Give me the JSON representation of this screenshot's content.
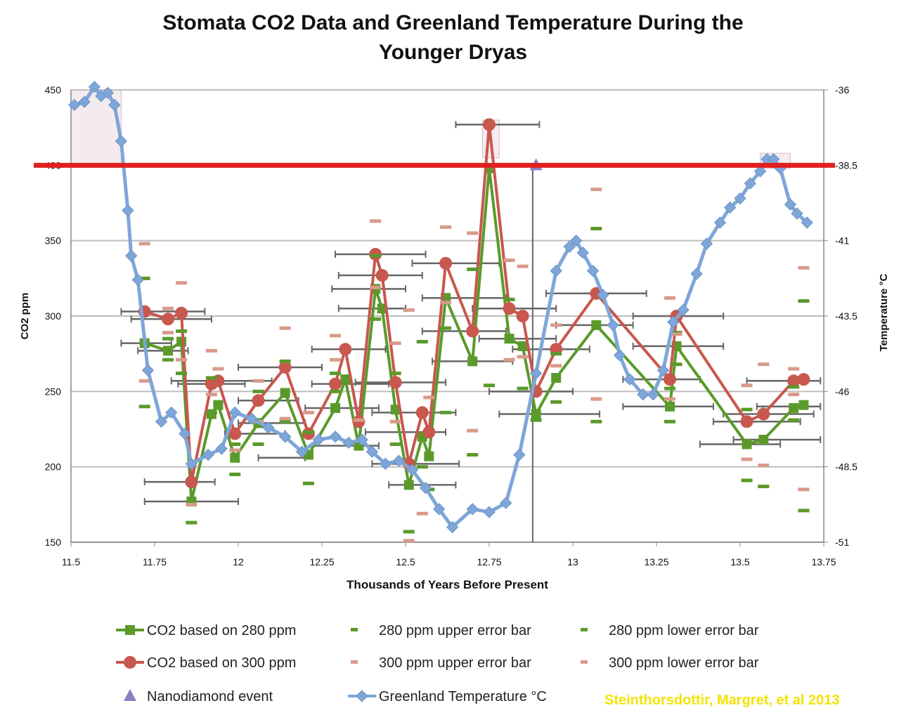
{
  "chart_data": {
    "type": "line",
    "title_line1": "Stomata CO2 Data and Greenland Temperature During the",
    "title_line2": "Younger Dryas",
    "xlabel": "Thousands of Years Before Present",
    "ylabel_left": "CO2 ppm",
    "ylabel_right": "Temperature °C",
    "xlim": [
      11.5,
      13.75
    ],
    "ylim_left": [
      150,
      450
    ],
    "ylim_right": [
      -51,
      -36
    ],
    "x_ticks": [
      "11.5",
      "11.75",
      "12",
      "12.25",
      "12.5",
      "12.75",
      "13",
      "13.25",
      "13.5",
      "13.75"
    ],
    "y_left_ticks": [
      "150",
      "200",
      "250",
      "300",
      "350",
      "400",
      "450"
    ],
    "y_right_ticks": [
      "-36",
      "-38.5",
      "-41",
      "-43.5",
      "-46",
      "-48.5",
      "-51"
    ],
    "grid": true,
    "reference_line": {
      "y": 400,
      "color": "#e02020"
    },
    "vertical_line": {
      "x": 12.88
    },
    "highlight_regions": [
      {
        "x": [
          11.5,
          11.65
        ],
        "y": [
          400,
          450
        ]
      },
      {
        "x": [
          12.73,
          12.78
        ],
        "y": [
          405,
          430
        ]
      },
      {
        "x": [
          13.56,
          13.65
        ],
        "y": [
          398,
          408
        ]
      }
    ],
    "series": [
      {
        "name": "CO2 based on 280 ppm",
        "color": "#5a9a2a",
        "marker": "square",
        "x": [
          11.72,
          11.79,
          11.83,
          11.86,
          11.92,
          11.94,
          11.99,
          12.06,
          12.14,
          12.21,
          12.29,
          12.32,
          12.36,
          12.41,
          12.43,
          12.47,
          12.51,
          12.55,
          12.57,
          12.62,
          12.7,
          12.75,
          12.81,
          12.85,
          12.89,
          12.95,
          13.07,
          13.29,
          13.31,
          13.52,
          13.57,
          13.66,
          13.69
        ],
        "y": [
          282,
          277,
          283,
          177,
          235,
          241,
          206,
          229,
          249,
          208,
          239,
          258,
          214,
          318,
          305,
          238,
          188,
          220,
          207,
          312,
          270,
          398,
          285,
          280,
          235,
          259,
          294,
          240,
          280,
          215,
          218,
          239,
          241
        ]
      },
      {
        "name": "CO2 based on 300 ppm",
        "color": "#c8574e",
        "marker": "circle",
        "x": [
          11.72,
          11.79,
          11.83,
          11.86,
          11.92,
          11.94,
          11.99,
          12.06,
          12.14,
          12.21,
          12.29,
          12.32,
          12.36,
          12.41,
          12.43,
          12.47,
          12.51,
          12.55,
          12.57,
          12.62,
          12.7,
          12.75,
          12.81,
          12.85,
          12.89,
          12.95,
          13.07,
          13.29,
          13.31,
          13.52,
          13.57,
          13.66,
          13.69
        ],
        "y": [
          303,
          298,
          302,
          190,
          255,
          257,
          222,
          244,
          266,
          222,
          255,
          278,
          230,
          341,
          327,
          256,
          202,
          236,
          223,
          335,
          290,
          427,
          305,
          300,
          250,
          278,
          315,
          258,
          300,
          230,
          235,
          257,
          258
        ]
      },
      {
        "name": "280 ppm upper error bar",
        "color": "#5a9a2a",
        "marker": "dash",
        "x": [
          11.72,
          11.79,
          11.83,
          11.92,
          11.99,
          12.06,
          12.14,
          12.21,
          12.29,
          12.41,
          12.47,
          12.55,
          12.62,
          12.7,
          12.81,
          12.95,
          13.07,
          13.29,
          13.31,
          13.52,
          13.66,
          13.69
        ],
        "y": [
          325,
          285,
          290,
          259,
          215,
          250,
          270,
          223,
          262,
          340,
          262,
          283,
          292,
          331,
          311,
          275,
          358,
          252,
          289,
          238,
          253,
          310
        ]
      },
      {
        "name": "280 ppm lower error bar",
        "color": "#5a9a2a",
        "marker": "dash",
        "x": [
          11.72,
          11.79,
          11.83,
          11.86,
          11.92,
          11.99,
          12.06,
          12.14,
          12.21,
          12.29,
          12.41,
          12.47,
          12.51,
          12.55,
          12.57,
          12.62,
          12.7,
          12.75,
          12.85,
          12.89,
          12.95,
          13.07,
          13.29,
          13.31,
          13.52,
          13.57,
          13.66,
          13.69
        ],
        "y": [
          240,
          271,
          262,
          163,
          236,
          195,
          215,
          230,
          189,
          250,
          298,
          215,
          157,
          200,
          185,
          236,
          208,
          254,
          252,
          231,
          243,
          230,
          230,
          268,
          191,
          187,
          231,
          171
        ]
      },
      {
        "name": "300 ppm upper error bar",
        "color": "#d99a8a",
        "marker": "dash",
        "x": [
          11.72,
          11.79,
          11.83,
          11.92,
          11.94,
          12.06,
          12.14,
          12.29,
          12.36,
          12.41,
          12.47,
          12.51,
          12.57,
          12.62,
          12.7,
          12.81,
          12.85,
          12.95,
          13.07,
          13.29,
          13.31,
          13.52,
          13.57,
          13.66,
          13.69
        ],
        "y": [
          348,
          305,
          322,
          277,
          265,
          257,
          292,
          287,
          231,
          363,
          282,
          304,
          246,
          359,
          355,
          337,
          333,
          294,
          384,
          312,
          288,
          254,
          268,
          265,
          332
        ]
      },
      {
        "name": "300 ppm lower error bar",
        "color": "#d99a8a",
        "marker": "dash",
        "x": [
          11.72,
          11.79,
          11.83,
          11.86,
          11.92,
          11.99,
          12.06,
          12.14,
          12.21,
          12.29,
          12.41,
          12.47,
          12.51,
          12.55,
          12.62,
          12.7,
          12.81,
          12.85,
          12.95,
          13.07,
          13.29,
          13.52,
          13.57,
          13.66,
          13.69
        ],
        "y": [
          257,
          289,
          271,
          175,
          248,
          211,
          230,
          232,
          236,
          271,
          319,
          230,
          151,
          169,
          309,
          224,
          271,
          273,
          267,
          245,
          245,
          205,
          201,
          248,
          185
        ]
      },
      {
        "name": "Nanodiamond event",
        "color": "#8e7cc3",
        "marker": "triangle",
        "x": [
          12.89
        ],
        "y": [
          400
        ]
      },
      {
        "name": "Greenland Temperature °C",
        "color": "#7ea6d8",
        "marker": "diamond",
        "axis": "right",
        "x": [
          11.51,
          11.54,
          11.57,
          11.59,
          11.61,
          11.63,
          11.65,
          11.67,
          11.68,
          11.7,
          11.73,
          11.77,
          11.8,
          11.84,
          11.86,
          11.91,
          11.95,
          11.99,
          12.04,
          12.09,
          12.14,
          12.19,
          12.24,
          12.29,
          12.33,
          12.37,
          12.4,
          12.44,
          12.48,
          12.52,
          12.56,
          12.6,
          12.64,
          12.7,
          12.75,
          12.8,
          12.84,
          12.89,
          12.95,
          12.99,
          13.01,
          13.03,
          13.06,
          13.09,
          13.12,
          13.14,
          13.17,
          13.21,
          13.24,
          13.27,
          13.3,
          13.33,
          13.37,
          13.4,
          13.44,
          13.47,
          13.5,
          13.53,
          13.56,
          13.58,
          13.6,
          13.62,
          13.65,
          13.67,
          13.7
        ],
        "y": [
          -36.5,
          -36.4,
          -35.9,
          -36.2,
          -36.1,
          -36.5,
          -37.7,
          -40.0,
          -41.5,
          -42.3,
          -45.3,
          -47.0,
          -46.7,
          -47.4,
          -48.4,
          -48.1,
          -47.9,
          -46.7,
          -46.9,
          -47.2,
          -47.5,
          -48.0,
          -47.6,
          -47.5,
          -47.7,
          -47.6,
          -48.0,
          -48.4,
          -48.3,
          -48.6,
          -49.2,
          -49.9,
          -50.5,
          -49.9,
          -50.0,
          -49.7,
          -48.1,
          -45.4,
          -42.0,
          -41.2,
          -41.0,
          -41.4,
          -42.0,
          -42.8,
          -43.8,
          -44.8,
          -45.6,
          -46.1,
          -46.1,
          -45.3,
          -43.7,
          -43.3,
          -42.1,
          -41.1,
          -40.4,
          -39.9,
          -39.6,
          -39.1,
          -38.7,
          -38.3,
          -38.3,
          -38.6,
          -39.8,
          -40.1,
          -40.4
        ]
      }
    ],
    "x_error_bars": [
      {
        "y": 303,
        "x": [
          11.65,
          11.9
        ]
      },
      {
        "y": 298,
        "x": [
          11.68,
          11.92
        ]
      },
      {
        "y": 282,
        "x": [
          11.65,
          11.8
        ]
      },
      {
        "y": 277,
        "x": [
          11.7,
          11.85
        ]
      },
      {
        "y": 190,
        "x": [
          11.72,
          11.93
        ]
      },
      {
        "y": 177,
        "x": [
          11.72,
          12.0
        ]
      },
      {
        "y": 257,
        "x": [
          11.8,
          12.1
        ]
      },
      {
        "y": 255,
        "x": [
          11.82,
          12.02
        ]
      },
      {
        "y": 222,
        "x": [
          11.96,
          12.14
        ]
      },
      {
        "y": 244,
        "x": [
          12.0,
          12.18
        ]
      },
      {
        "y": 266,
        "x": [
          12.0,
          12.25
        ]
      },
      {
        "y": 206,
        "x": [
          12.06,
          12.2
        ]
      },
      {
        "y": 229,
        "x": [
          12.0,
          12.2
        ]
      },
      {
        "y": 278,
        "x": [
          12.22,
          12.44
        ]
      },
      {
        "y": 255,
        "x": [
          12.22,
          12.45
        ]
      },
      {
        "y": 239,
        "x": [
          12.2,
          12.42
        ]
      },
      {
        "y": 214,
        "x": [
          12.22,
          12.42
        ]
      },
      {
        "y": 341,
        "x": [
          12.29,
          12.56
        ]
      },
      {
        "y": 327,
        "x": [
          12.3,
          12.55
        ]
      },
      {
        "y": 318,
        "x": [
          12.28,
          12.5
        ]
      },
      {
        "y": 305,
        "x": [
          12.3,
          12.5
        ]
      },
      {
        "y": 256,
        "x": [
          12.35,
          12.62
        ]
      },
      {
        "y": 236,
        "x": [
          12.4,
          12.65
        ]
      },
      {
        "y": 223,
        "x": [
          12.38,
          12.62
        ]
      },
      {
        "y": 202,
        "x": [
          12.4,
          12.66
        ]
      },
      {
        "y": 188,
        "x": [
          12.45,
          12.65
        ]
      },
      {
        "y": 335,
        "x": [
          12.52,
          12.78
        ]
      },
      {
        "y": 312,
        "x": [
          12.55,
          12.8
        ]
      },
      {
        "y": 290,
        "x": [
          12.55,
          12.8
        ]
      },
      {
        "y": 270,
        "x": [
          12.58,
          12.82
        ]
      },
      {
        "y": 427,
        "x": [
          12.65,
          12.9
        ]
      },
      {
        "y": 305,
        "x": [
          12.7,
          12.95
        ]
      },
      {
        "y": 285,
        "x": [
          12.72,
          12.95
        ]
      },
      {
        "y": 250,
        "x": [
          12.75,
          13.0
        ]
      },
      {
        "y": 235,
        "x": [
          12.78,
          13.08
        ]
      },
      {
        "y": 278,
        "x": [
          12.82,
          13.05
        ]
      },
      {
        "y": 315,
        "x": [
          12.92,
          13.22
        ]
      },
      {
        "y": 294,
        "x": [
          12.95,
          13.18
        ]
      },
      {
        "y": 258,
        "x": [
          13.15,
          13.38
        ]
      },
      {
        "y": 240,
        "x": [
          13.15,
          13.42
        ]
      },
      {
        "y": 300,
        "x": [
          13.18,
          13.45
        ]
      },
      {
        "y": 280,
        "x": [
          13.18,
          13.45
        ]
      },
      {
        "y": 230,
        "x": [
          13.42,
          13.68
        ]
      },
      {
        "y": 215,
        "x": [
          13.38,
          13.62
        ]
      },
      {
        "y": 235,
        "x": [
          13.45,
          13.72
        ]
      },
      {
        "y": 218,
        "x": [
          13.48,
          13.74
        ]
      },
      {
        "y": 257,
        "x": [
          13.52,
          13.74
        ]
      },
      {
        "y": 240,
        "x": [
          13.55,
          13.74
        ]
      }
    ]
  },
  "legend": [
    {
      "label": "CO2 based on 280 ppm",
      "color": "#5a9a2a",
      "marker": "square"
    },
    {
      "label": "280 ppm upper error bar",
      "color": "#5a9a2a",
      "marker": "dash"
    },
    {
      "label": "280 ppm lower error bar",
      "color": "#5a9a2a",
      "marker": "dash"
    },
    {
      "label": "CO2 based on 300 ppm",
      "color": "#c8574e",
      "marker": "circle"
    },
    {
      "label": "300 ppm upper error bar",
      "color": "#d99a8a",
      "marker": "dash"
    },
    {
      "label": "300 ppm lower error bar",
      "color": "#d99a8a",
      "marker": "dash"
    },
    {
      "label": "Nanodiamond event",
      "color": "#8e7cc3",
      "marker": "triangle"
    },
    {
      "label": "Greenland Temperature °C",
      "color": "#7ea6d8",
      "marker": "diamond"
    }
  ],
  "credit": "Steinthorsdottir, Margret, et al 2013"
}
